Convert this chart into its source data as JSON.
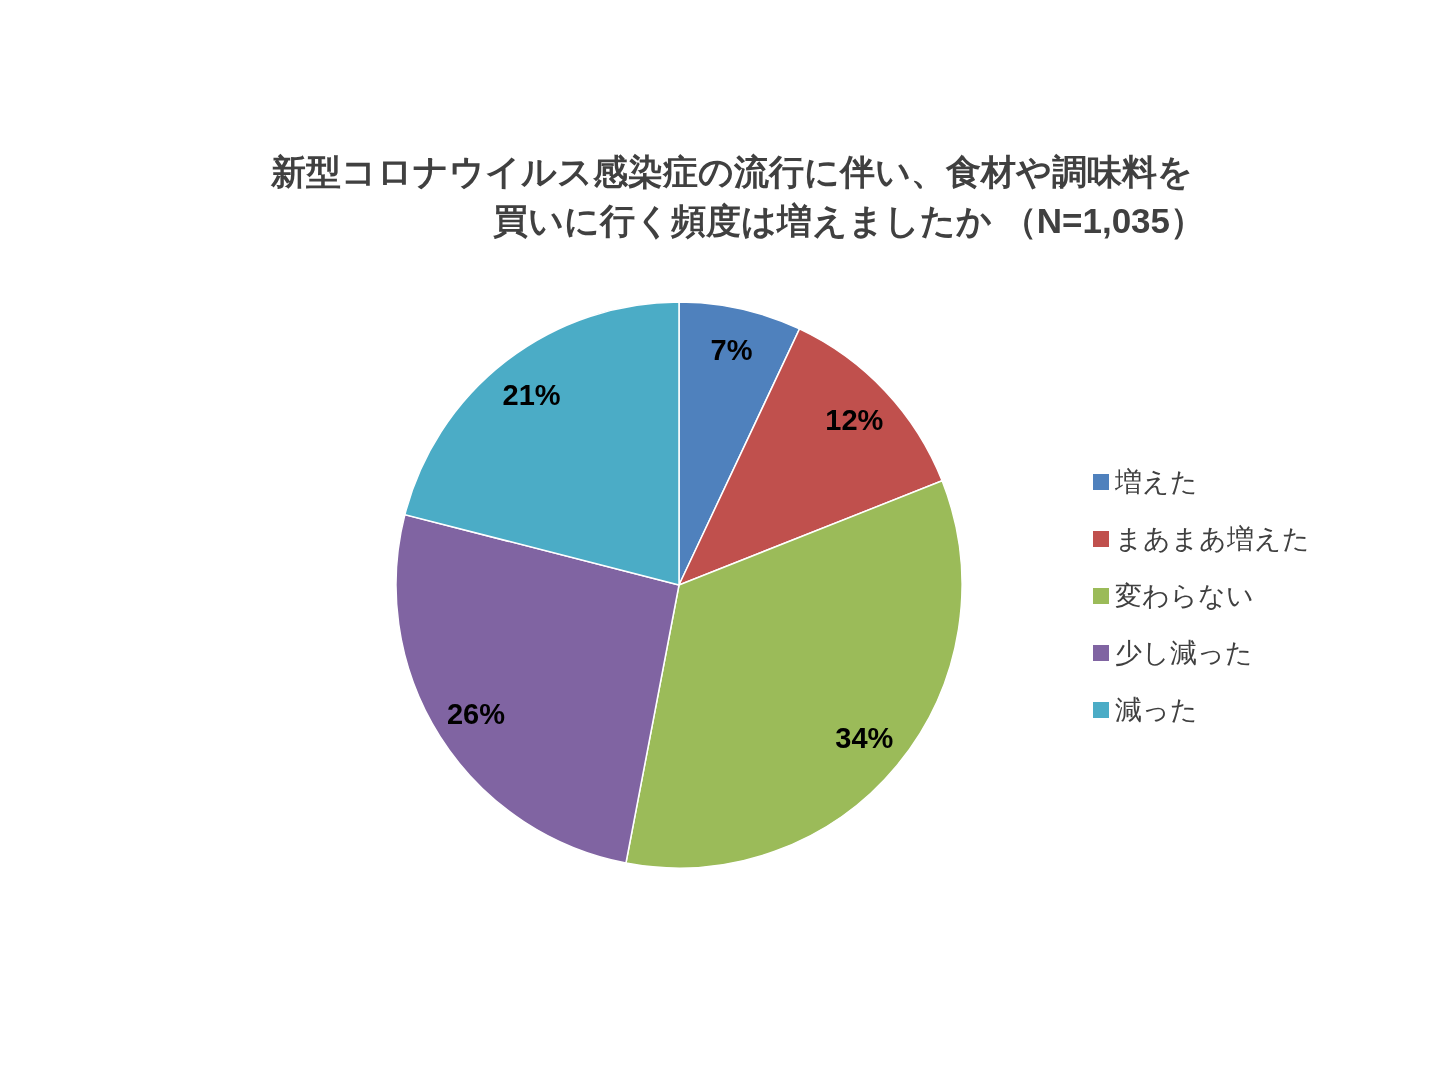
{
  "chart_data": {
    "type": "pie",
    "title": "新型コロナウイルス感染症の流行に伴い、食材や調味料を買いに行く頻度は増えましたか （N=1,035）",
    "categories": [
      "増えた",
      "まあまあ増えた",
      "変わらない",
      "少し減った",
      "減った"
    ],
    "values": [
      7,
      12,
      34,
      26,
      21
    ],
    "colors": [
      "#4f81bd",
      "#c0504d",
      "#9bbb59",
      "#8064a2",
      "#4bacc6"
    ],
    "value_labels": [
      "7%",
      "12%",
      "34%",
      "26%",
      "21%"
    ],
    "legend": "right"
  }
}
